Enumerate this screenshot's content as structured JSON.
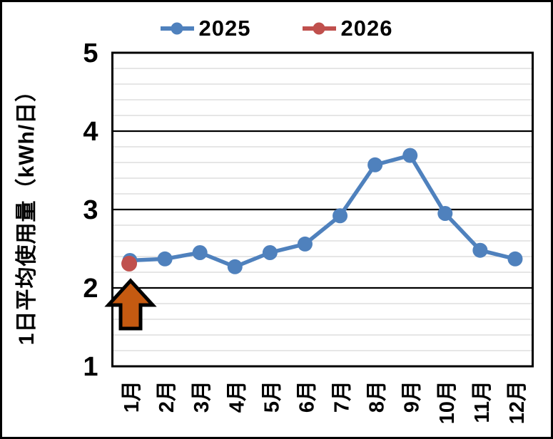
{
  "chart_data": {
    "type": "line",
    "title": "",
    "categories": [
      "1月",
      "2月",
      "3月",
      "4月",
      "5月",
      "6月",
      "7月",
      "8月",
      "9月",
      "10月",
      "11月",
      "12月"
    ],
    "series": [
      {
        "name": "2025",
        "color": "#4F81BD",
        "values": [
          2.35,
          2.37,
          2.45,
          2.27,
          2.45,
          2.56,
          2.92,
          3.57,
          3.69,
          2.95,
          2.48,
          2.37
        ]
      },
      {
        "name": "2026",
        "color": "#C0504D",
        "values": [
          2.31,
          null,
          null,
          null,
          null,
          null,
          null,
          null,
          null,
          null,
          null,
          null
        ]
      }
    ],
    "xlabel": "",
    "ylabel": "1日平均使用量（kWh/日）",
    "ylim": [
      1,
      5
    ],
    "y_tick_values": [
      5,
      4,
      3,
      2,
      1
    ],
    "y_tick_labels": [
      "5",
      "4",
      "3",
      "2",
      "1"
    ],
    "y_minor_step": 0.2,
    "grid": {
      "major_color": "#000000",
      "minor_color": "#D6D6D6",
      "minor": true
    },
    "legend_position": "top",
    "annotation": {
      "type": "up-arrow",
      "points_to": "1月 2026 data point",
      "fill": "#C55A11",
      "outline": "#000000"
    }
  }
}
